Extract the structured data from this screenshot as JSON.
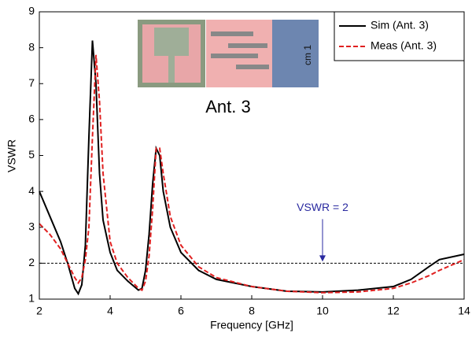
{
  "chart_data": {
    "type": "line",
    "x_label": "Frequency [GHz]",
    "y_label": "VSWR",
    "x": [
      2,
      2.3,
      2.6,
      2.8,
      3.0,
      3.1,
      3.2,
      3.3,
      3.4,
      3.5,
      3.6,
      3.7,
      3.8,
      4.0,
      4.2,
      4.5,
      4.8,
      4.9,
      5.0,
      5.1,
      5.2,
      5.3,
      5.4,
      5.5,
      5.7,
      6.0,
      6.5,
      7,
      8,
      9,
      10,
      11,
      12,
      12.5,
      13,
      13.3,
      14
    ],
    "series": [
      {
        "name": "Sim (Ant. 3)",
        "color": "#000000",
        "dash": false,
        "values": [
          4.0,
          3.3,
          2.6,
          2.0,
          1.3,
          1.15,
          1.4,
          2.5,
          5.5,
          8.2,
          7.0,
          4.5,
          3.2,
          2.3,
          1.8,
          1.5,
          1.25,
          1.3,
          1.8,
          2.8,
          4.2,
          5.2,
          5.0,
          4.0,
          3.0,
          2.3,
          1.8,
          1.55,
          1.35,
          1.22,
          1.2,
          1.25,
          1.35,
          1.55,
          1.9,
          2.1,
          2.25
        ]
      },
      {
        "name": "Meas (Ant. 3)",
        "color": "#e02020",
        "dash": true,
        "values": [
          3.1,
          2.8,
          2.4,
          2.0,
          1.6,
          1.45,
          1.6,
          2.1,
          3.0,
          5.5,
          7.8,
          6.5,
          4.5,
          2.6,
          2.0,
          1.6,
          1.3,
          1.25,
          1.5,
          2.2,
          3.5,
          5.2,
          5.2,
          4.5,
          3.3,
          2.5,
          1.9,
          1.6,
          1.35,
          1.22,
          1.18,
          1.2,
          1.3,
          1.45,
          1.65,
          1.8,
          2.1
        ]
      }
    ],
    "xlim": [
      2,
      14
    ],
    "xticks": [
      2,
      4,
      6,
      8,
      10,
      12,
      14
    ],
    "ylim": [
      1,
      9
    ],
    "yticks": [
      1,
      2,
      3,
      4,
      5,
      6,
      7,
      8,
      9
    ],
    "reference_line": {
      "y": 2,
      "color": "#000000"
    },
    "annotation": {
      "text": "VSWR = 2",
      "x": 10,
      "y": 2,
      "color": "#2a2aa0"
    },
    "inset_label": "Ant. 3",
    "inset_ruler_label": "cm 1",
    "legend": "upper right"
  }
}
